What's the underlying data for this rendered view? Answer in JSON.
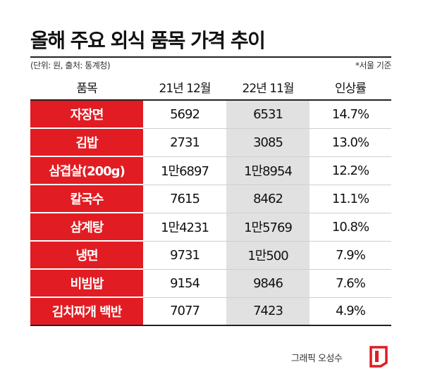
{
  "title": "올해 주요 외식 품목 가격 추이",
  "note_left": "(단위: 원, 출처: 통계청)",
  "note_right": "*서울 기준",
  "columns": {
    "item": "품목",
    "prev": "21년 12월",
    "cur": "22년 11월",
    "rate": "인상률"
  },
  "rows": [
    {
      "item": "자장면",
      "prev": "5692",
      "cur": "6531",
      "rate": "14.7%"
    },
    {
      "item": "김밥",
      "prev": "2731",
      "cur": "3085",
      "rate": "13.0%"
    },
    {
      "item": "삼겹살(200g)",
      "prev": "1만6897",
      "cur": "1만8954",
      "rate": "12.2%"
    },
    {
      "item": "칼국수",
      "prev": "7615",
      "cur": "8462",
      "rate": "11.1%"
    },
    {
      "item": "삼계탕",
      "prev": "1만4231",
      "cur": "1만5769",
      "rate": "10.8%"
    },
    {
      "item": "냉면",
      "prev": "9731",
      "cur": "1만500",
      "rate": "7.9%"
    },
    {
      "item": "비빔밥",
      "prev": "9154",
      "cur": "9846",
      "rate": "7.6%"
    },
    {
      "item": "김치찌개 백반",
      "prev": "7077",
      "cur": "7423",
      "rate": "4.9%"
    }
  ],
  "credit": "그래픽 오성수",
  "colors": {
    "accent": "#e11c22",
    "highlight": "#e1e1e1",
    "text": "#111111"
  },
  "logo_icon": "red-bracket-logo-icon"
}
